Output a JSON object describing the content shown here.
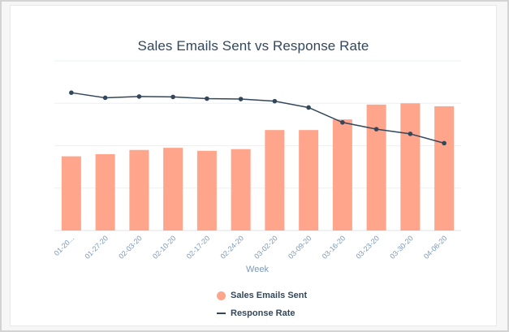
{
  "chart_data": {
    "type": "bar",
    "title": "Sales Emails Sent vs Response Rate",
    "xlabel": "Week",
    "ylabel": "",
    "categories": [
      "01-20...",
      "01-27-20",
      "02-03-20",
      "02-10-20",
      "02-17-20",
      "02-24-20",
      "03-02-20",
      "03-09-20",
      "03-16-20",
      "03-23-20",
      "03-30-20",
      "04-06-20"
    ],
    "series": [
      {
        "name": "Sales Emails Sent",
        "type": "bar",
        "color": "#ffa58c",
        "values": [
          1.75,
          1.8,
          1.9,
          1.95,
          1.88,
          1.92,
          2.37,
          2.37,
          2.62,
          2.97,
          3.0,
          2.93
        ]
      },
      {
        "name": "Response Rate",
        "type": "line",
        "color": "#33475b",
        "values": [
          3.25,
          3.13,
          3.16,
          3.15,
          3.11,
          3.1,
          3.05,
          2.9,
          2.55,
          2.39,
          2.28,
          2.06
        ]
      }
    ],
    "ylim": [
      0,
      4
    ],
    "y_tick_labels_shown": false,
    "grid": true,
    "legend_position": "bottom"
  }
}
